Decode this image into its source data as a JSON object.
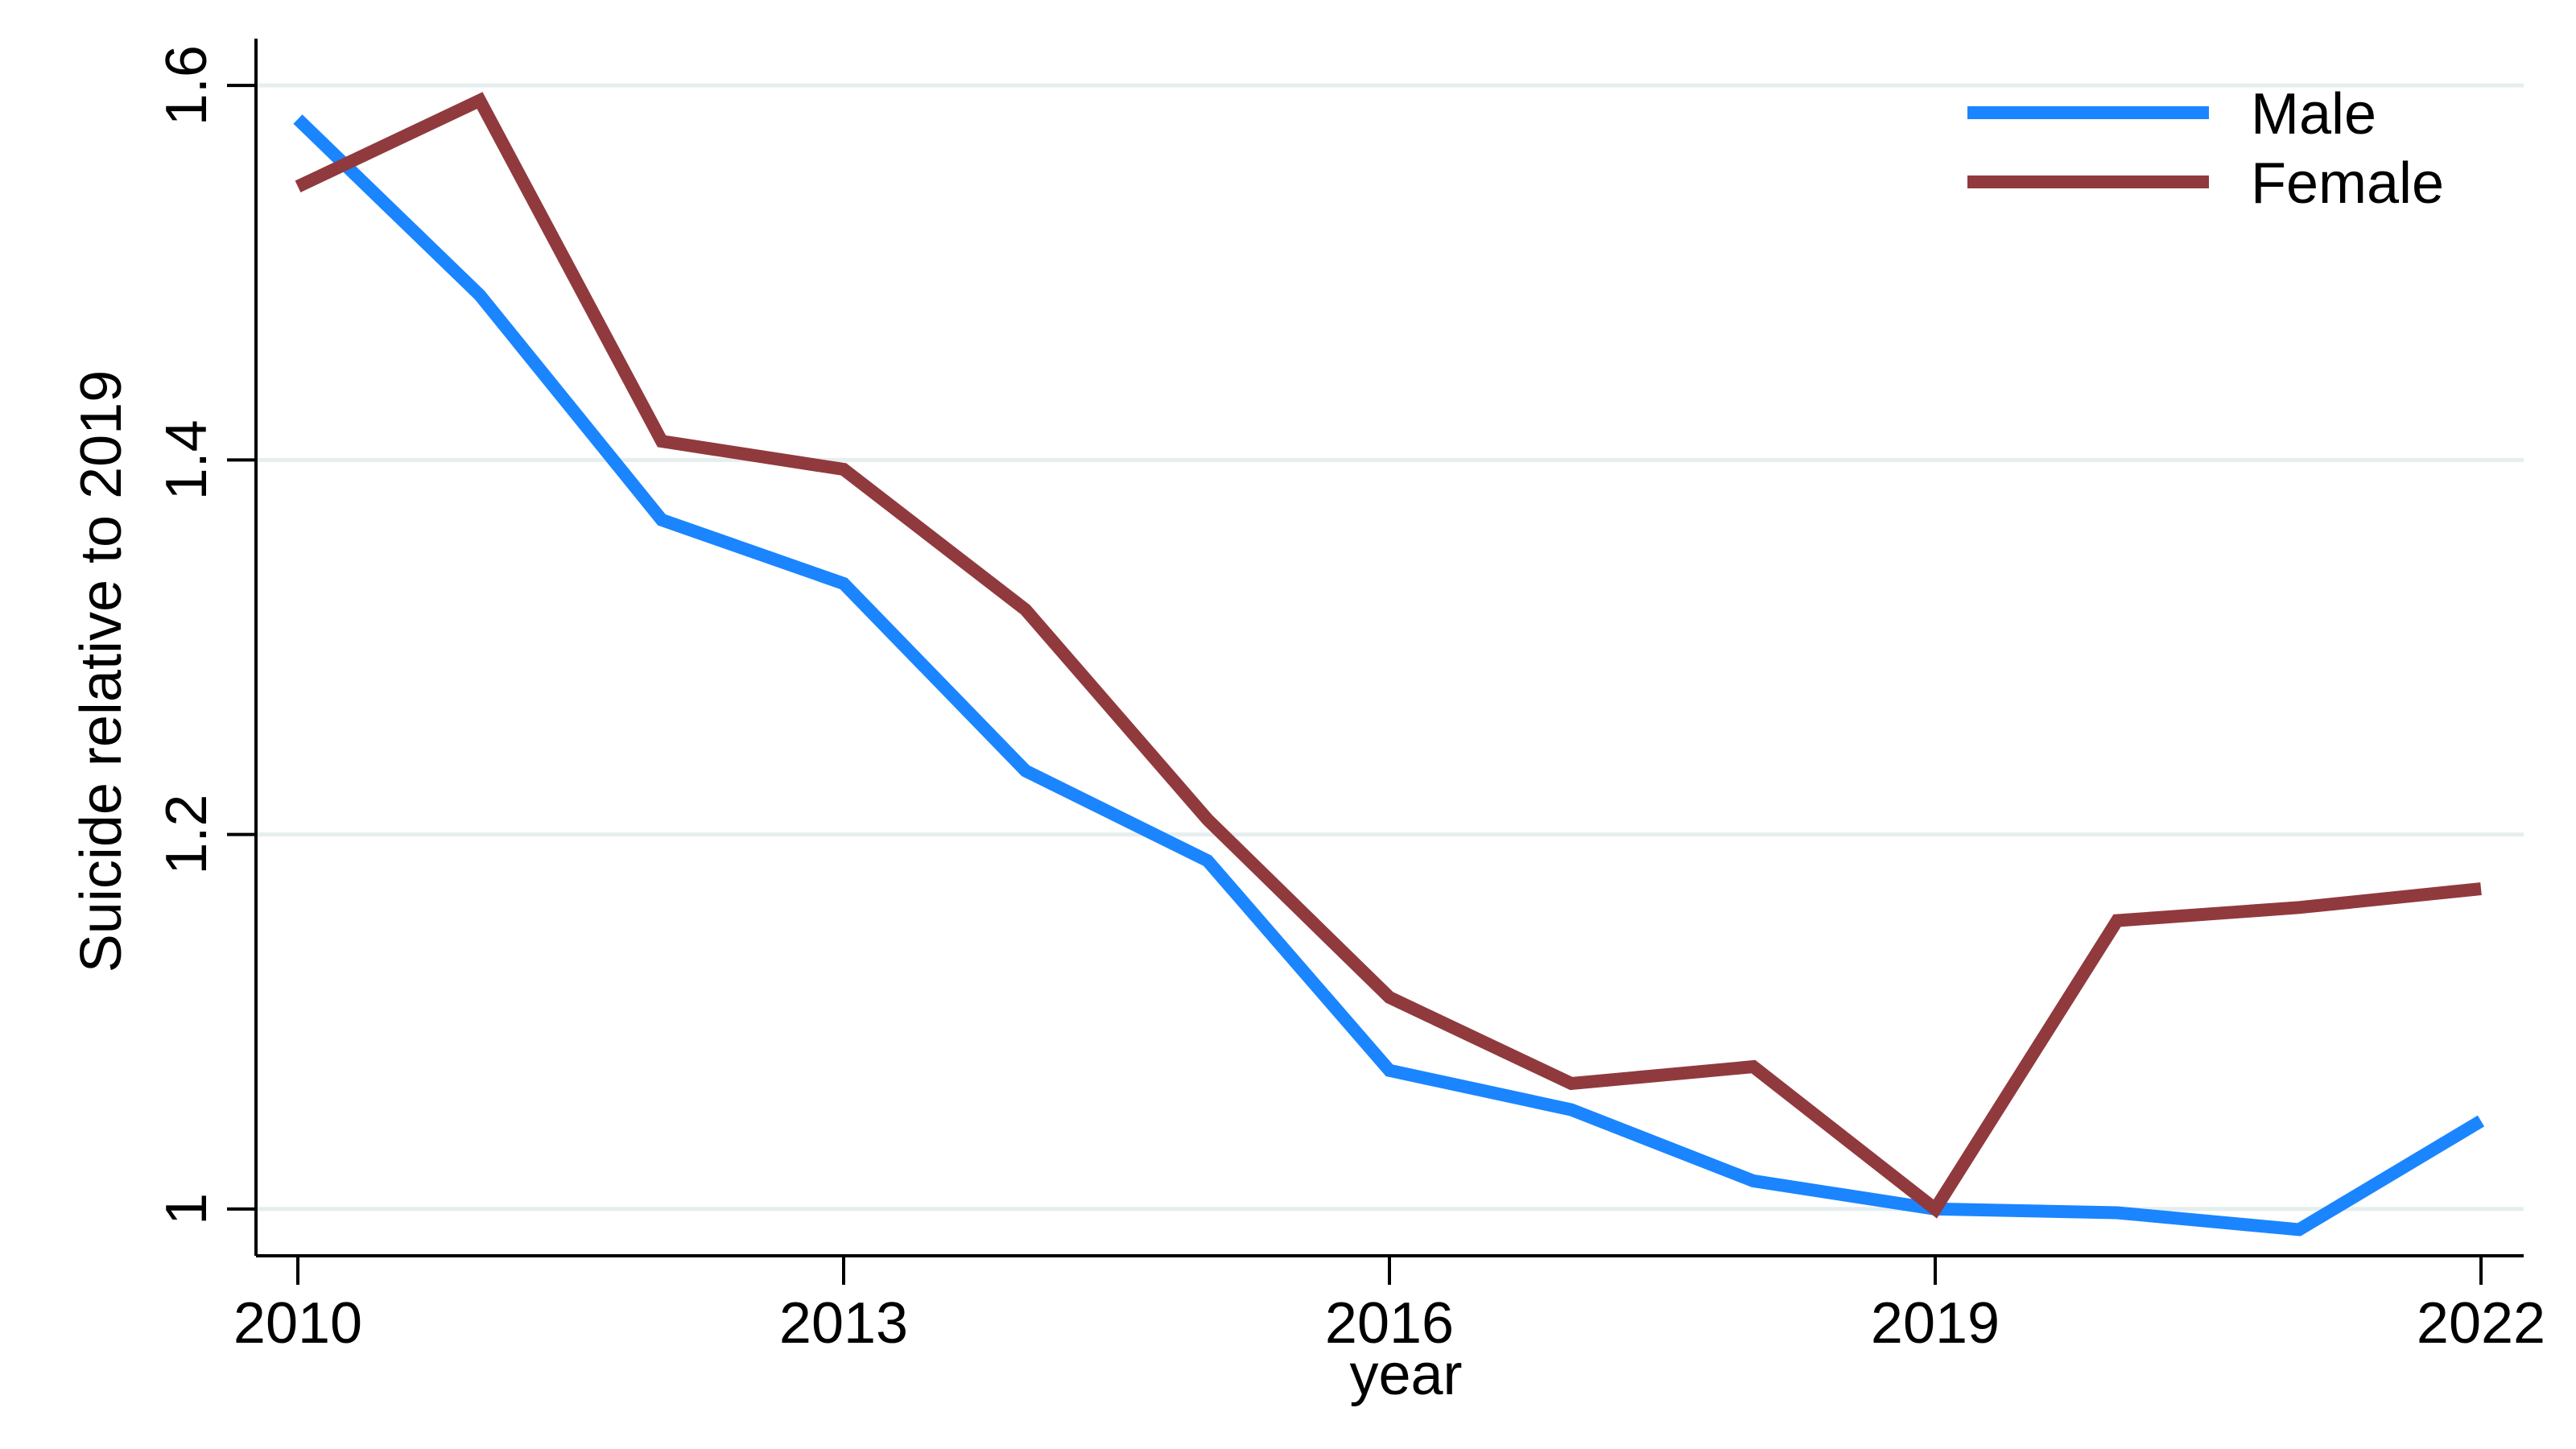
{
  "chart_data": {
    "type": "line",
    "xlabel": "year",
    "ylabel": "Suicide relative to 2019",
    "x": [
      2010,
      2011,
      2012,
      2013,
      2014,
      2015,
      2016,
      2017,
      2018,
      2019,
      2020,
      2021,
      2022
    ],
    "xticks": [
      "2010",
      "2013",
      "2016",
      "2019",
      "2022"
    ],
    "yticks": [
      "1",
      "1.2",
      "1.4",
      "1.6"
    ],
    "xlim": [
      2010,
      2022
    ],
    "ylim": [
      0.975,
      1.625
    ],
    "grid": true,
    "legend_position": "top-right",
    "series": [
      {
        "name": "Male",
        "color": "#1a85ff",
        "values": [
          1.582,
          1.488,
          1.368,
          1.334,
          1.234,
          1.186,
          1.074,
          1.053,
          1.015,
          1.0,
          0.998,
          0.989,
          1.047
        ]
      },
      {
        "name": "Female",
        "color": "#903a3e",
        "values": [
          1.546,
          1.592,
          1.41,
          1.395,
          1.32,
          1.208,
          1.113,
          1.067,
          1.076,
          1.0,
          1.154,
          1.161,
          1.171
        ]
      }
    ]
  }
}
